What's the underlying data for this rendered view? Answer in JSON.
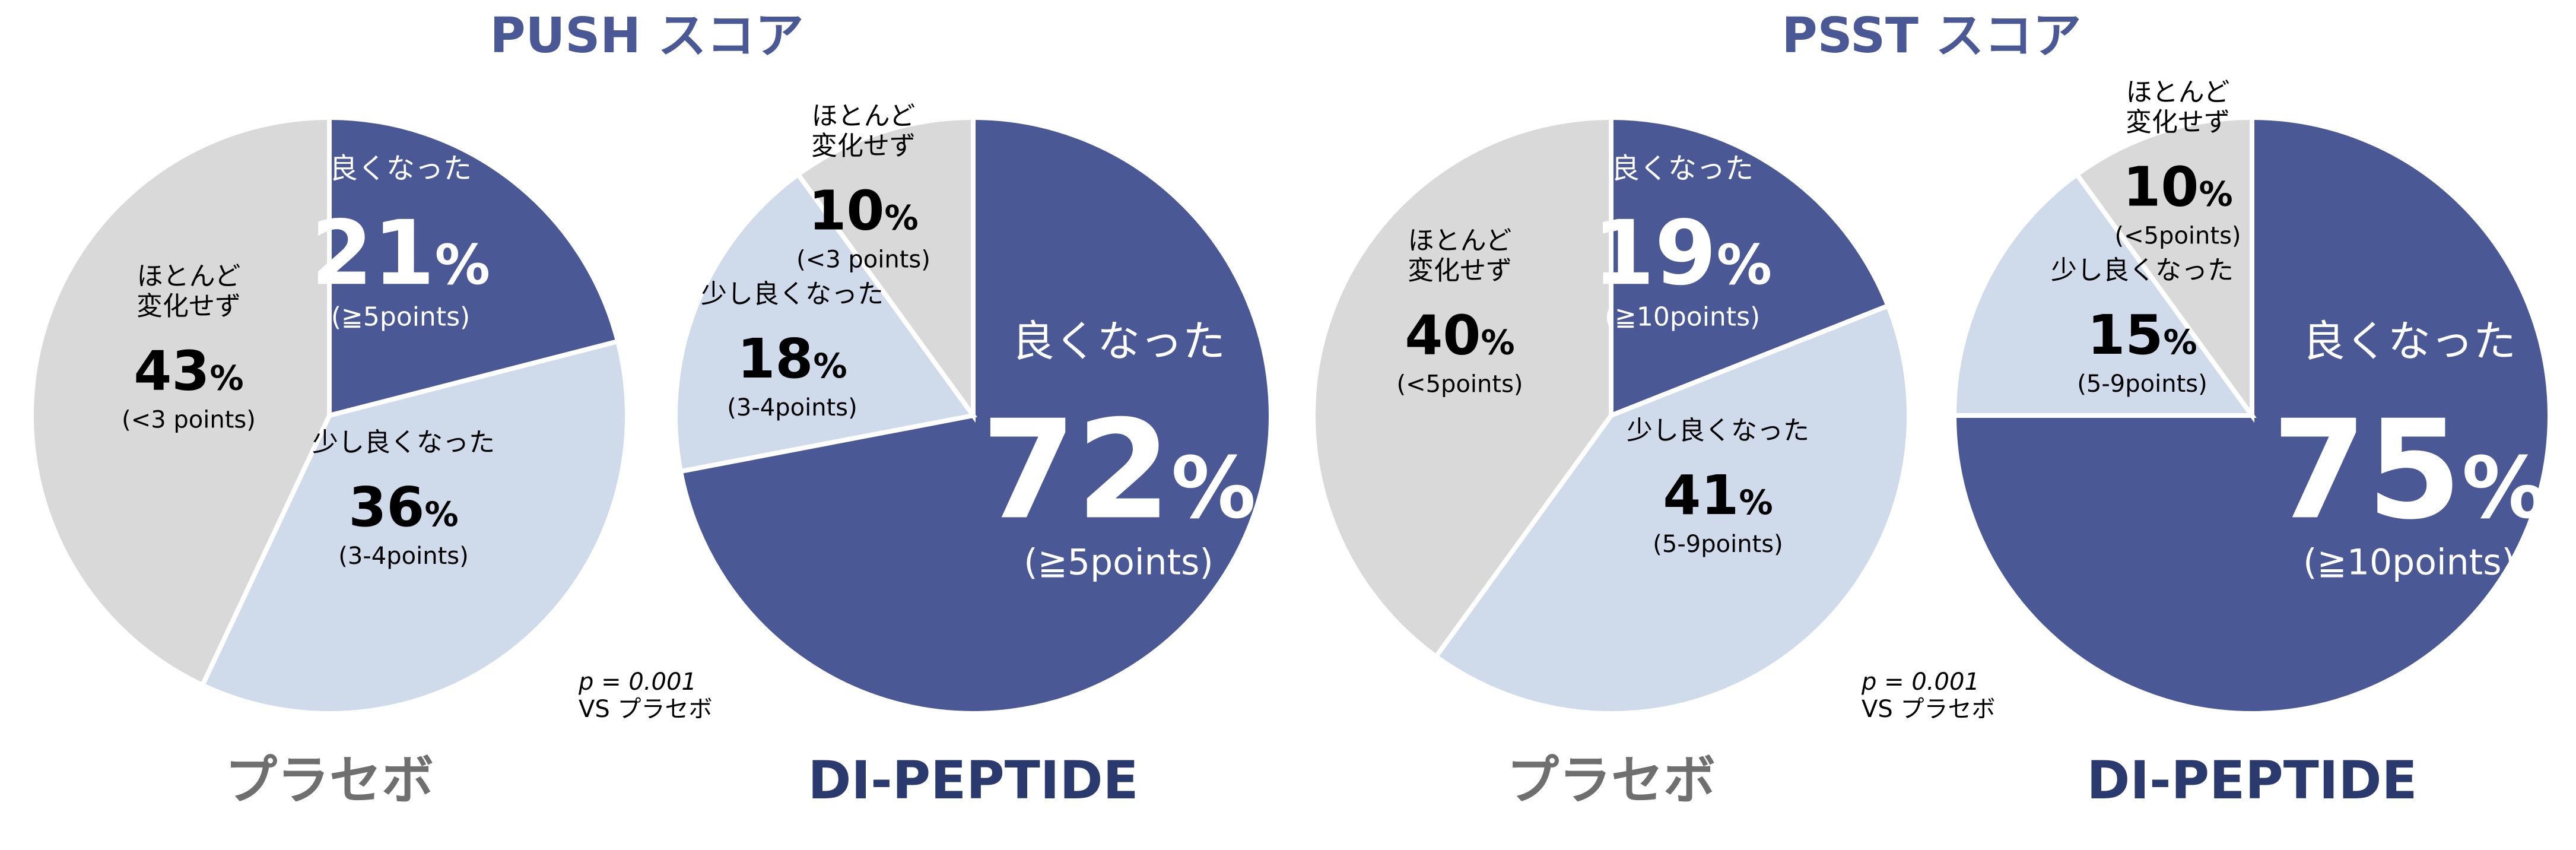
{
  "colors": {
    "good": "#4a5996",
    "slightly": "#cfdaea",
    "nochange": "#d9d9d9",
    "title": "#4a5996",
    "placebo_title": "#6f6f6f",
    "peptide_title": "#2b3a6e"
  },
  "groups": [
    {
      "title": "PUSH スコア",
      "p_value": "p = 0.001",
      "comparison": "VS プラセボ"
    },
    {
      "title": "PSST スコア",
      "p_value": "p = 0.001",
      "comparison": "VS プラセボ"
    }
  ],
  "chart_data": [
    {
      "type": "pie",
      "group": "PUSH スコア",
      "title": "プラセボ",
      "slices": [
        {
          "label": "良くなった",
          "value": 21,
          "pct": "21%",
          "note": "(≧5points)",
          "color": "#4a5996"
        },
        {
          "label": "少し良くなった",
          "value": 36,
          "pct": "36%",
          "note": "(3-4points)",
          "color": "#cfdaea"
        },
        {
          "label": "ほとんど\n変化せず",
          "value": 43,
          "pct": "43%",
          "note": "(<3 points)",
          "color": "#d9d9d9"
        }
      ]
    },
    {
      "type": "pie",
      "group": "PUSH スコア",
      "title": "DI-PEPTIDE",
      "slices": [
        {
          "label": "良くなった",
          "value": 72,
          "pct": "72%",
          "note": "(≧5points)",
          "color": "#4a5996"
        },
        {
          "label": "少し良くなった",
          "value": 18,
          "pct": "18%",
          "note": "(3-4points)",
          "color": "#cfdaea"
        },
        {
          "label": "ほとんど\n変化せず",
          "value": 10,
          "pct": "10%",
          "note": "(<3 points)",
          "color": "#d9d9d9"
        }
      ]
    },
    {
      "type": "pie",
      "group": "PSST スコア",
      "title": "プラセボ",
      "slices": [
        {
          "label": "良くなった",
          "value": 19,
          "pct": "19%",
          "note": "(≧10points)",
          "color": "#4a5996"
        },
        {
          "label": "少し良くなった",
          "value": 41,
          "pct": "41%",
          "note": "(5-9points)",
          "color": "#cfdaea"
        },
        {
          "label": "ほとんど\n変化せず",
          "value": 40,
          "pct": "40%",
          "note": "(<5points)",
          "color": "#d9d9d9"
        }
      ]
    },
    {
      "type": "pie",
      "group": "PSST スコア",
      "title": "DI-PEPTIDE",
      "slices": [
        {
          "label": "良くなった",
          "value": 75,
          "pct": "75%",
          "note": "(≧10points)",
          "color": "#4a5996"
        },
        {
          "label": "少し良くなった",
          "value": 15,
          "pct": "15%",
          "note": "(5-9points)",
          "color": "#cfdaea"
        },
        {
          "label": "ほとんど\n変化せず",
          "value": 10,
          "pct": "10%",
          "note": "(<5points)",
          "color": "#d9d9d9"
        }
      ]
    }
  ]
}
